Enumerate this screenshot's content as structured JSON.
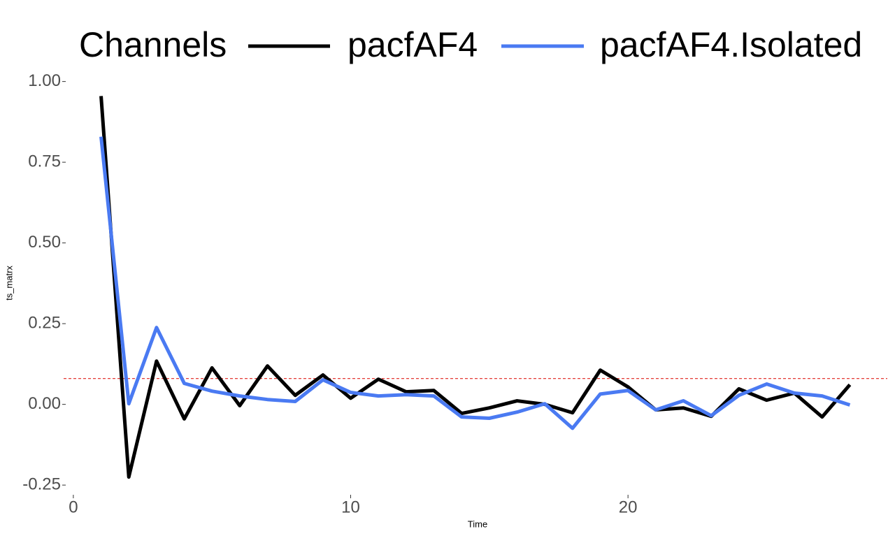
{
  "chart_data": {
    "type": "line",
    "legend_title": "Channels",
    "x_label": "Time",
    "y_label": "ts_matrx",
    "x": [
      1,
      2,
      3,
      4,
      5,
      6,
      7,
      8,
      9,
      10,
      11,
      12,
      13,
      14,
      15,
      16,
      17,
      18,
      19,
      20,
      21,
      22,
      23,
      24,
      25,
      26,
      27,
      28
    ],
    "series": [
      {
        "name": "pacfAF4",
        "color": "#000000",
        "values": [
          0.955,
          -0.225,
          0.134,
          -0.045,
          0.113,
          -0.004,
          0.119,
          0.028,
          0.091,
          0.019,
          0.078,
          0.039,
          0.043,
          -0.028,
          -0.011,
          0.011,
          0.0,
          -0.026,
          0.106,
          0.054,
          -0.017,
          -0.011,
          -0.037,
          0.048,
          0.013,
          0.035,
          -0.039,
          0.061
        ]
      },
      {
        "name": "pacfAF4.Isolated",
        "color": "#4a7af2",
        "values": [
          0.829,
          0.002,
          0.238,
          0.065,
          0.041,
          0.026,
          0.015,
          0.009,
          0.076,
          0.037,
          0.026,
          0.03,
          0.026,
          -0.039,
          -0.043,
          -0.024,
          0.002,
          -0.074,
          0.032,
          0.043,
          -0.017,
          0.011,
          -0.035,
          0.028,
          0.063,
          0.035,
          0.026,
          -0.002
        ]
      }
    ],
    "hline": 0.08,
    "hline_color": "#e0201b",
    "xlim": [
      -0.35,
      29.35
    ],
    "xticks": [
      0,
      10,
      20
    ],
    "ylim": [
      -0.28,
      1.01
    ],
    "yticks": [
      {
        "value": -0.25,
        "label": "-0.25"
      },
      {
        "value": 0,
        "label": "0.00"
      },
      {
        "value": 0.25,
        "label": "0.25"
      },
      {
        "value": 0.5,
        "label": "0.50"
      },
      {
        "value": 0.75,
        "label": "0.75"
      },
      {
        "value": 1,
        "label": "1.00"
      }
    ],
    "grid": false
  }
}
